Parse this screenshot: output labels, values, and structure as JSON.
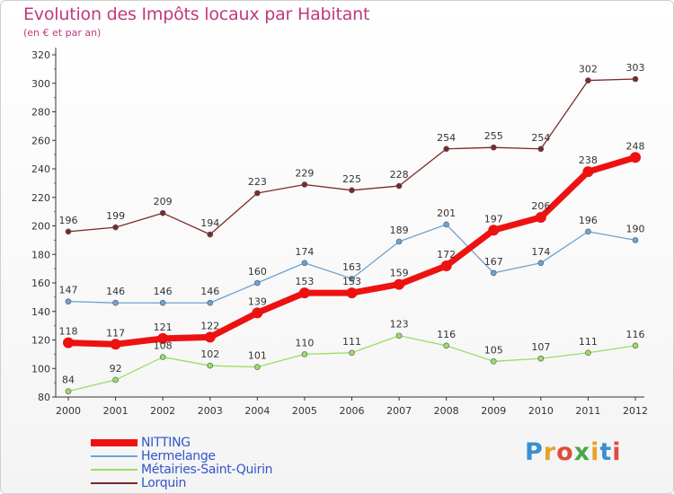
{
  "header": {
    "title": "Evolution des Impôts locaux par Habitant",
    "subtitle": "(en € et par an)"
  },
  "logo": {
    "letters": [
      "P",
      "r",
      "o",
      "x",
      "i",
      "t",
      "i"
    ],
    "colors": [
      "#3a8fd0",
      "#e8a22a",
      "#e04c3c",
      "#4aa84a",
      "#e8a22a",
      "#3a8fd0",
      "#e04c3c"
    ]
  },
  "colors": {
    "title": "#c0397b",
    "legend_text": "#3355cc",
    "axis": "#333333",
    "grid": "#dddddd"
  },
  "chart_data": {
    "type": "line",
    "title": "Evolution des Impôts locaux par Habitant",
    "subtitle": "(en € et par an)",
    "xlabel": "",
    "ylabel": "",
    "x": [
      "2000",
      "2001",
      "2002",
      "2003",
      "2004",
      "2005",
      "2006",
      "2007",
      "2008",
      "2009",
      "2010",
      "2011",
      "2012"
    ],
    "ylim": [
      80,
      320
    ],
    "yticks": [
      80,
      100,
      120,
      140,
      160,
      180,
      200,
      220,
      240,
      260,
      280,
      300,
      320
    ],
    "grid": false,
    "legend_position": "bottom-left",
    "series": [
      {
        "name": "NITTING",
        "color": "#ee1111",
        "values": [
          118,
          117,
          121,
          122,
          139,
          153,
          153,
          159,
          172,
          197,
          206,
          238,
          248
        ],
        "labels": [
          "118",
          "117",
          "121",
          "122",
          "139",
          "153",
          "153",
          "159",
          "172",
          "197",
          "206",
          "238",
          "248"
        ]
      },
      {
        "name": "Hermelange",
        "color": "#6fa2d0",
        "values": [
          147,
          146,
          146,
          146,
          160,
          174,
          163,
          189,
          201,
          167,
          174,
          196,
          190
        ],
        "labels": [
          "147",
          "146",
          "146",
          "146",
          "160",
          "174",
          "163",
          "189",
          "201",
          "167",
          "174",
          "196",
          "190"
        ]
      },
      {
        "name": "Métairies-Saint-Quirin",
        "color": "#99dd66",
        "values": [
          84,
          92,
          108,
          102,
          101,
          110,
          111,
          123,
          116,
          105,
          107,
          111,
          116
        ],
        "labels": [
          "84",
          "92",
          "108",
          "102",
          "101",
          "110",
          "111",
          "123",
          "116",
          "105",
          "107",
          "111",
          "116"
        ]
      },
      {
        "name": "Lorquin",
        "color": "#7a2a2a",
        "values": [
          196,
          199,
          209,
          194,
          223,
          229,
          225,
          228,
          254,
          255,
          254,
          302,
          303
        ],
        "labels": [
          "196",
          "199",
          "209",
          "194",
          "223",
          "229",
          "225",
          "228",
          "254",
          "255",
          "254",
          "302",
          "303"
        ]
      }
    ]
  }
}
